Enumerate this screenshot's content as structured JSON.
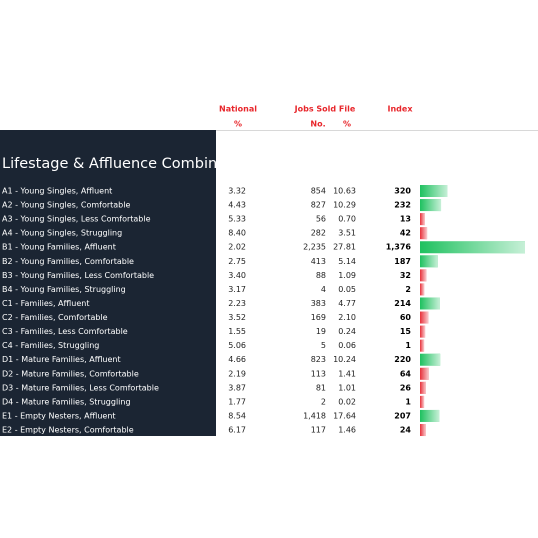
{
  "header": {
    "national": "National",
    "national_unit": "%",
    "jobs": "Jobs Sold File",
    "jobs_no": "No.",
    "jobs_pct": "%",
    "index": "Index"
  },
  "title": "Lifestage & Affluence Combination",
  "rows": [
    {
      "label": "A1 - Young Singles, Affluent",
      "national": "3.32",
      "no": "854",
      "pct": "10.63",
      "index": 320,
      "bar_color": "#1ec15f"
    },
    {
      "label": "A2 - Young Singles, Comfortable",
      "national": "4.43",
      "no": "827",
      "pct": "10.29",
      "index": 232,
      "bar_color": "#1ec15f"
    },
    {
      "label": "A3 - Young Singles, Less Comfortable",
      "national": "5.33",
      "no": "56",
      "pct": "0.70",
      "index": 13,
      "bar_color": "#e8303a"
    },
    {
      "label": "A4 - Young Singles, Struggling",
      "national": "8.40",
      "no": "282",
      "pct": "3.51",
      "index": 42,
      "bar_color": "#e8303a"
    },
    {
      "label": "B1 - Young Families, Affluent",
      "national": "2.02",
      "no": "2,235",
      "pct": "27.81",
      "index": {
        "value": 1376,
        "label": "1,376"
      },
      "bar_color": "#1ec15f"
    },
    {
      "label": "B2 - Young Families, Comfortable",
      "national": "2.75",
      "no": "413",
      "pct": "5.14",
      "index": 187,
      "bar_color": "#1ec15f"
    },
    {
      "label": "B3 - Young Families, Less Comfortable",
      "national": "3.40",
      "no": "88",
      "pct": "1.09",
      "index": 32,
      "bar_color": "#e8303a"
    },
    {
      "label": "B4 - Young Families, Struggling",
      "national": "3.17",
      "no": "4",
      "pct": "0.05",
      "index": 2,
      "bar_color": "#e8303a"
    },
    {
      "label": "C1 - Families, Affluent",
      "national": "2.23",
      "no": "383",
      "pct": "4.77",
      "index": 214,
      "bar_color": "#1ec15f"
    },
    {
      "label": "C2 - Families, Comfortable",
      "national": "3.52",
      "no": "169",
      "pct": "2.10",
      "index": 60,
      "bar_color": "#e8303a"
    },
    {
      "label": "C3 - Families, Less Comfortable",
      "national": "1.55",
      "no": "19",
      "pct": "0.24",
      "index": 15,
      "bar_color": "#e8303a"
    },
    {
      "label": "C4 - Families, Struggling",
      "national": "5.06",
      "no": "5",
      "pct": "0.06",
      "index": 1,
      "bar_color": "#e8303a"
    },
    {
      "label": "D1 - Mature Families, Affluent",
      "national": "4.66",
      "no": "823",
      "pct": "10.24",
      "index": 220,
      "bar_color": "#1ec15f"
    },
    {
      "label": "D2 - Mature Families, Comfortable",
      "national": "2.19",
      "no": "113",
      "pct": "1.41",
      "index": 64,
      "bar_color": "#e8303a"
    },
    {
      "label": "D3 - Mature Families, Less Comfortable",
      "national": "3.87",
      "no": "81",
      "pct": "1.01",
      "index": 26,
      "bar_color": "#e8303a"
    },
    {
      "label": "D4 - Mature Families, Struggling",
      "national": "1.77",
      "no": "2",
      "pct": "0.02",
      "index": 1,
      "bar_color": "#e8303a"
    },
    {
      "label": "E1 - Empty Nesters, Affluent",
      "national": "8.54",
      "no": "1,418",
      "pct": "17.64",
      "index": 207,
      "bar_color": "#1ec15f"
    },
    {
      "label": "E2 - Empty Nesters, Comfortable",
      "national": "6.17",
      "no": "117",
      "pct": "1.46",
      "index": 24,
      "bar_color": "#e8303a"
    }
  ]
}
